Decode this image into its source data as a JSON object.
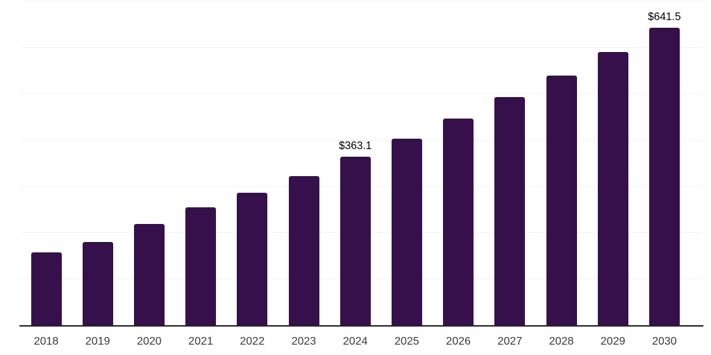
{
  "chart_data": {
    "type": "bar",
    "title": "",
    "xlabel": "",
    "ylabel": "",
    "categories": [
      "2018",
      "2019",
      "2020",
      "2021",
      "2022",
      "2023",
      "2024",
      "2025",
      "2026",
      "2027",
      "2028",
      "2029",
      "2030"
    ],
    "values": [
      157,
      179,
      218,
      254,
      285,
      322,
      363.1,
      403,
      446,
      492,
      539,
      590,
      641.5
    ],
    "data_labels": [
      "",
      "",
      "",
      "",
      "",
      "",
      "$363.1",
      "",
      "",
      "",
      "",
      "",
      "$641.5"
    ],
    "ylim": [
      0,
      700
    ],
    "gridline_step": 100,
    "grid": true,
    "legend": false,
    "y_tick_labels_visible": false,
    "colors": {
      "bar": "#36104b",
      "axis": "#222222",
      "gridline": "#f2f2f2",
      "tick_label": "#3a3a3a",
      "data_label": "#000000",
      "background": "#ffffff"
    }
  }
}
